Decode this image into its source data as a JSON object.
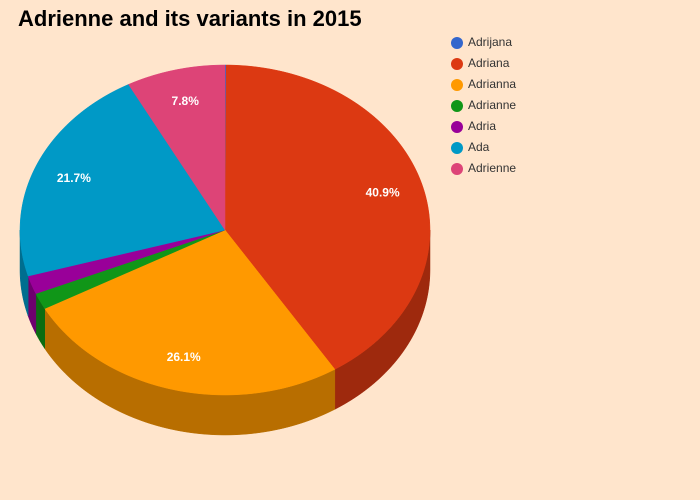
{
  "chart_data": {
    "type": "pie3d",
    "title": "Adrienne and its variants in 2015",
    "categories": [
      "Adrijana",
      "Adriana",
      "Adrianna",
      "Adrianne",
      "Adria",
      "Ada",
      "Adrienne"
    ],
    "values": [
      0.1,
      40.9,
      26.1,
      1.6,
      1.8,
      21.7,
      7.8
    ],
    "value_labels": [
      null,
      "40.9%",
      "26.1%",
      null,
      null,
      "21.7%",
      "7.8%"
    ],
    "colors": [
      "#3366cc",
      "#dc3912",
      "#ff9900",
      "#109618",
      "#990099",
      "#0099c6",
      "#dd4477"
    ],
    "legend": "right"
  }
}
